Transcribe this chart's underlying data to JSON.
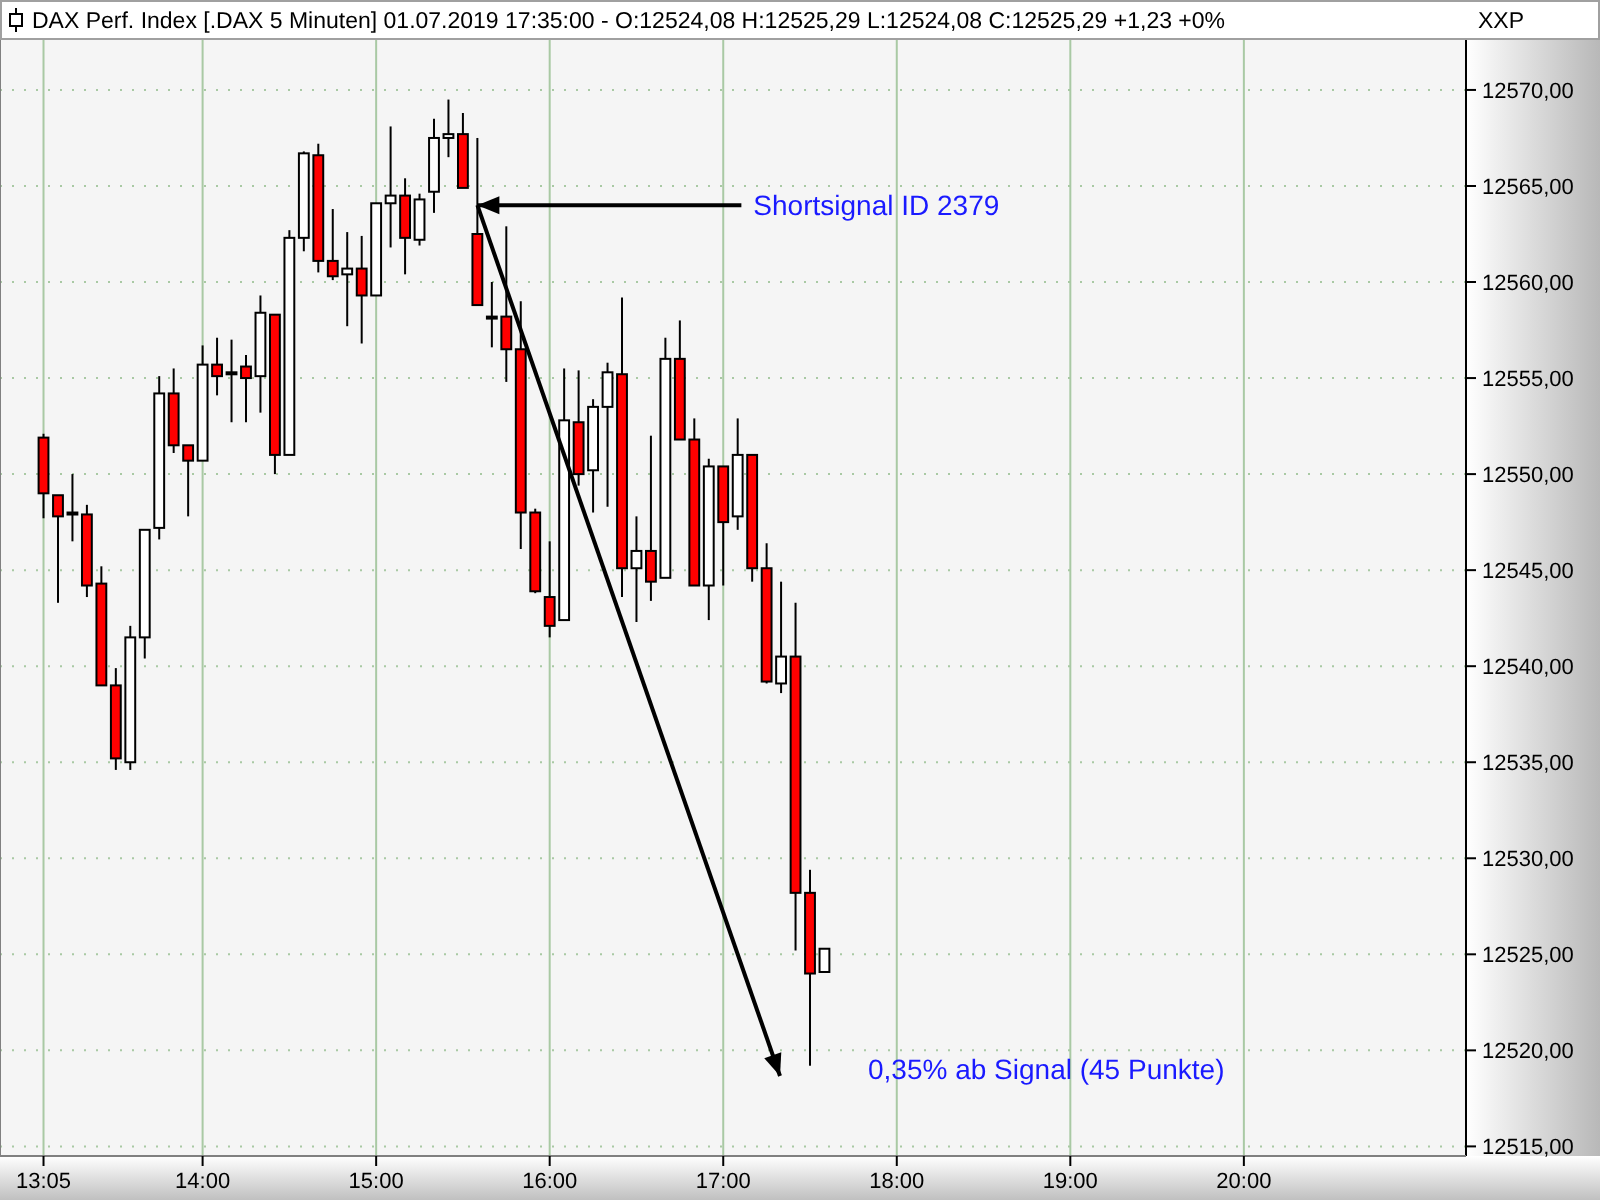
{
  "chart_data": {
    "type": "candlestick",
    "title": "DAX Perf. Index [.DAX  5 Minuten] 01.07.2019 17:35:00 - O:12524,08 H:12525,29 L:12524,08 C:12525,29 +1,23 +0%",
    "annotations": [
      "XXP",
      {
        "text": "Shortsignal ID 2379",
        "x": 15.5833,
        "y": 12564
      },
      "0,35% ab Signal (45 Punkte)"
    ],
    "x": [
      13.0833,
      13.1667,
      13.25,
      13.3333,
      13.4167,
      13.5,
      13.5833,
      13.6667,
      13.75,
      13.8333,
      13.9167,
      14,
      14.0833,
      14.1667,
      14.25,
      14.3333,
      14.4167,
      14.5,
      14.5833,
      14.6667,
      14.75,
      14.8333,
      14.9167,
      15,
      15.0833,
      15.1667,
      15.25,
      15.3333,
      15.4167,
      15.5,
      15.5833,
      15.6667,
      15.75,
      15.8333,
      15.9167,
      16,
      16.0833,
      16.1667,
      16.25,
      16.3333,
      16.4167,
      16.5,
      16.5833,
      16.6667,
      16.75,
      16.8333,
      16.9167,
      17,
      17.0833,
      17.1667,
      17.25,
      17.3333,
      17.4167,
      17.5,
      17.5833
    ],
    "ohlc": [
      [
        12551.9,
        12552.1,
        12547.7,
        12549.0
      ],
      [
        12548.9,
        12548.9,
        12543.3,
        12547.8
      ],
      [
        12548.0,
        12550.0,
        12546.5,
        12548.0
      ],
      [
        12547.9,
        12548.4,
        12543.6,
        12544.2
      ],
      [
        12544.3,
        12545.2,
        12539.0,
        12539.0
      ],
      [
        12539.0,
        12539.9,
        12534.6,
        12535.2
      ],
      [
        12535.0,
        12542.1,
        12534.6,
        12541.5
      ],
      [
        12541.5,
        12547.1,
        12540.4,
        12547.1
      ],
      [
        12547.2,
        12555.1,
        12546.6,
        12554.2
      ],
      [
        12554.2,
        12555.5,
        12551.1,
        12551.5
      ],
      [
        12551.5,
        12551.5,
        12547.8,
        12550.7
      ],
      [
        12550.7,
        12556.7,
        12550.7,
        12555.7
      ],
      [
        12555.7,
        12557.1,
        12554.1,
        12555.1
      ],
      [
        12555.3,
        12557.0,
        12552.7,
        12555.3
      ],
      [
        12555.6,
        12556.2,
        12552.7,
        12555.0
      ],
      [
        12555.1,
        12559.3,
        12553.2,
        12558.4
      ],
      [
        12558.3,
        12558.3,
        12550.0,
        12551.0
      ],
      [
        12551.0,
        12562.7,
        12551.0,
        12562.3
      ],
      [
        12562.3,
        12566.8,
        12561.6,
        12566.7
      ],
      [
        12566.6,
        12567.2,
        12560.5,
        12561.1
      ],
      [
        12561.1,
        12563.8,
        12560.1,
        12560.3
      ],
      [
        12560.4,
        12562.6,
        12557.7,
        12560.7
      ],
      [
        12560.7,
        12562.4,
        12556.8,
        12559.3
      ],
      [
        12559.3,
        12564.1,
        12559.3,
        12564.1
      ],
      [
        12564.1,
        12568.1,
        12561.8,
        12564.5
      ],
      [
        12564.5,
        12565.4,
        12560.4,
        12562.3
      ],
      [
        12562.2,
        12564.6,
        12561.9,
        12564.3
      ],
      [
        12564.7,
        12568.5,
        12563.6,
        12567.5
      ],
      [
        12567.5,
        12569.5,
        12566.5,
        12567.7
      ],
      [
        12567.7,
        12568.8,
        12564.9,
        12564.9
      ],
      [
        12562.5,
        12567.5,
        12558.8,
        12558.8
      ],
      [
        12558.2,
        12560.0,
        12556.6,
        12558.2
      ],
      [
        12558.2,
        12562.9,
        12554.8,
        12556.5
      ],
      [
        12556.5,
        12559.0,
        12546.1,
        12548.0
      ],
      [
        12548.0,
        12548.2,
        12543.8,
        12543.9
      ],
      [
        12543.6,
        12546.5,
        12541.5,
        12542.1
      ],
      [
        12542.4,
        12555.5,
        12542.4,
        12552.8
      ],
      [
        12552.7,
        12555.4,
        12549.4,
        12550.0
      ],
      [
        12550.2,
        12553.9,
        12548.0,
        12553.5
      ],
      [
        12553.5,
        12555.8,
        12548.3,
        12555.3
      ],
      [
        12555.2,
        12559.2,
        12543.6,
        12545.1
      ],
      [
        12545.1,
        12547.8,
        12542.3,
        12546.0
      ],
      [
        12546.0,
        12552.0,
        12543.4,
        12544.4
      ],
      [
        12544.6,
        12557.1,
        12544.6,
        12556.0
      ],
      [
        12556.0,
        12558.0,
        12551.8,
        12551.8
      ],
      [
        12551.8,
        12552.9,
        12544.2,
        12544.2
      ],
      [
        12544.2,
        12550.8,
        12542.4,
        12550.4
      ],
      [
        12550.4,
        12550.4,
        12544.2,
        12547.5
      ],
      [
        12547.8,
        12552.9,
        12547.1,
        12551.0
      ],
      [
        12551.0,
        12551.0,
        12544.4,
        12545.1
      ],
      [
        12545.1,
        12546.4,
        12539.1,
        12539.2
      ],
      [
        12539.1,
        12544.4,
        12538.6,
        12540.5
      ],
      [
        12540.5,
        12543.3,
        12525.2,
        12528.2
      ],
      [
        12528.2,
        12529.4,
        12519.2,
        12524.0
      ],
      [
        12524.08,
        12525.29,
        12524.08,
        12525.29
      ]
    ],
    "xlim": [
      13.04,
      21.28
    ],
    "xticks": [
      {
        "value": 13.0833,
        "label": "13:05"
      },
      {
        "value": 14,
        "label": "14:00"
      },
      {
        "value": 15,
        "label": "15:00"
      },
      {
        "value": 16,
        "label": "16:00"
      },
      {
        "value": 17,
        "label": "17:00"
      },
      {
        "value": 18,
        "label": "18:00"
      },
      {
        "value": 19,
        "label": "19:00"
      },
      {
        "value": 20,
        "label": "20:00"
      }
    ],
    "ylim": [
      12514.5,
      12572.6
    ],
    "yticks": [
      {
        "value": 12515,
        "label": "12515,00"
      },
      {
        "value": 12520,
        "label": "12520,00"
      },
      {
        "value": 12525,
        "label": "12525,00"
      },
      {
        "value": 12530,
        "label": "12530,00"
      },
      {
        "value": 12535,
        "label": "12535,00"
      },
      {
        "value": 12540,
        "label": "12540,00"
      },
      {
        "value": 12545,
        "label": "12545,00"
      },
      {
        "value": 12550,
        "label": "12550,00"
      },
      {
        "value": 12555,
        "label": "12555,00"
      },
      {
        "value": 12560,
        "label": "12560,00"
      },
      {
        "value": 12565,
        "label": "12565,00"
      },
      {
        "value": 12570,
        "label": "12570,00"
      }
    ],
    "grid": true
  }
}
